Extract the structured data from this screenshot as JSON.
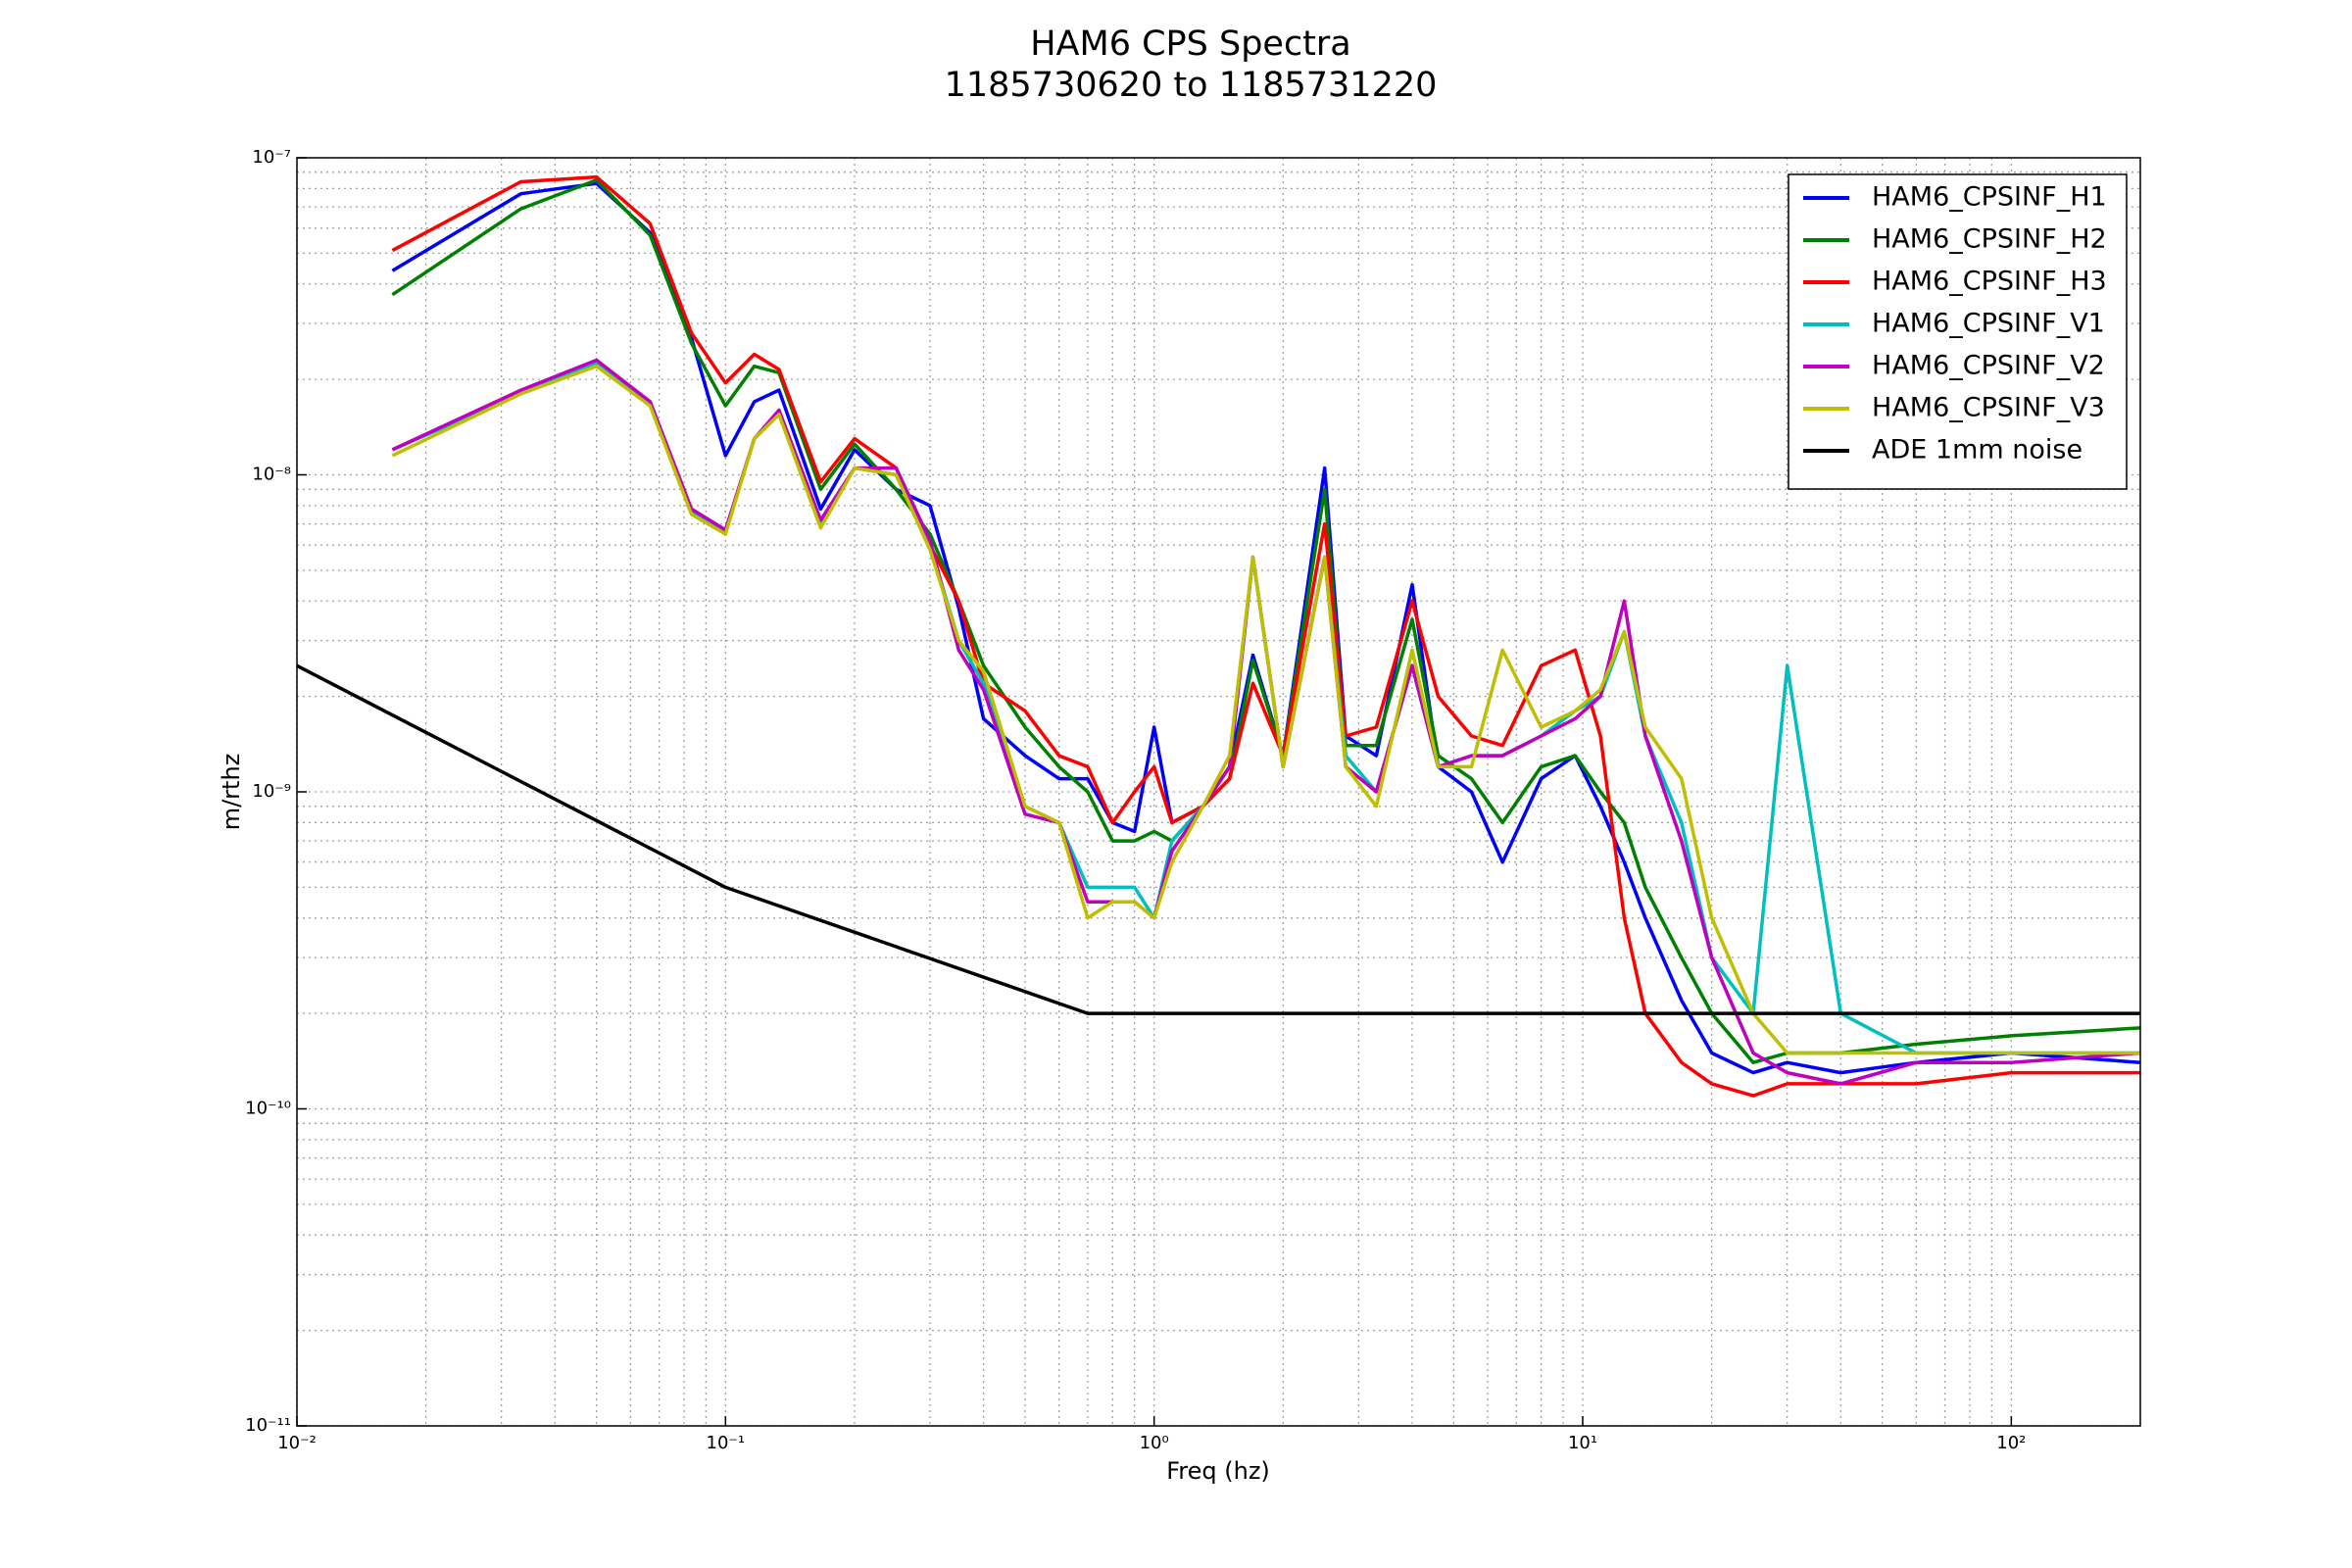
{
  "chart_data": {
    "type": "line",
    "title": "HAM6 CPS Spectra",
    "subtitle": "1185730620 to 1185731220",
    "x_label": "Freq (hz)",
    "y_label": "m/rthz",
    "log_x": true,
    "log_y": true,
    "grid": true,
    "legend": "upper right",
    "xlim": [
      0.01,
      200
    ],
    "ylim": [
      1e-11,
      1e-07
    ],
    "xticks": [
      {
        "value": 0.01,
        "label": "10⁻²"
      },
      {
        "value": 0.1,
        "label": "10⁻¹"
      },
      {
        "value": 1,
        "label": "10⁰"
      },
      {
        "value": 10,
        "label": "10¹"
      },
      {
        "value": 100,
        "label": "10²"
      }
    ],
    "yticks": [
      {
        "value": 1e-11,
        "label": "10⁻¹¹"
      },
      {
        "value": 1e-10,
        "label": "10⁻¹⁰"
      },
      {
        "value": 1e-09,
        "label": "10⁻⁹"
      },
      {
        "value": 1e-08,
        "label": "10⁻⁸"
      },
      {
        "value": 1e-07,
        "label": "10⁻⁷"
      }
    ],
    "x": [
      0.0167,
      0.0333,
      0.05,
      0.0667,
      0.0833,
      0.1,
      0.1167,
      0.1333,
      0.1667,
      0.2,
      0.25,
      0.3,
      0.35,
      0.4,
      0.5,
      0.6,
      0.7,
      0.8,
      0.9,
      1.0,
      1.1,
      1.3,
      1.5,
      1.7,
      2.0,
      2.5,
      2.8,
      3.3,
      4.0,
      4.6,
      5.5,
      6.5,
      8.0,
      9.6,
      11,
      12.5,
      14,
      17,
      20,
      25,
      30,
      40,
      60,
      100,
      200
    ],
    "series": [
      {
        "name": "HAM6_CPSINF_H1",
        "color": "#0000ff",
        "values": [
          4.4e-08,
          7.7e-08,
          8.3e-08,
          5.8e-08,
          2.7e-08,
          1.15e-08,
          1.7e-08,
          1.85e-08,
          7.8e-09,
          1.2e-08,
          9e-09,
          8e-09,
          3.8e-09,
          1.7e-09,
          1.3e-09,
          1.1e-09,
          1.1e-09,
          8e-10,
          7.5e-10,
          1.6e-09,
          8e-10,
          9e-10,
          1.2e-09,
          2.7e-09,
          1.3e-09,
          1.05e-08,
          1.5e-09,
          1.3e-09,
          4.5e-09,
          1.2e-09,
          1e-09,
          6e-10,
          1.1e-09,
          1.3e-09,
          9e-10,
          6e-10,
          4e-10,
          2.2e-10,
          1.5e-10,
          1.3e-10,
          1.4e-10,
          1.3e-10,
          1.4e-10,
          1.5e-10,
          1.4e-10
        ]
      },
      {
        "name": "HAM6_CPSINF_H2",
        "color": "#008000",
        "values": [
          3.7e-08,
          6.9e-08,
          8.5e-08,
          5.7e-08,
          2.6e-08,
          1.65e-08,
          2.2e-08,
          2.1e-08,
          9e-09,
          1.25e-08,
          9e-09,
          6.5e-09,
          4e-09,
          2.5e-09,
          1.6e-09,
          1.2e-09,
          1e-09,
          7e-10,
          7e-10,
          7.5e-10,
          7e-10,
          9e-10,
          1.1e-09,
          2.6e-09,
          1.3e-09,
          9e-09,
          1.4e-09,
          1.4e-09,
          3.5e-09,
          1.3e-09,
          1.1e-09,
          8e-10,
          1.2e-09,
          1.3e-09,
          1e-09,
          8e-10,
          5e-10,
          3e-10,
          2e-10,
          1.4e-10,
          1.5e-10,
          1.5e-10,
          1.6e-10,
          1.7e-10,
          1.8e-10
        ]
      },
      {
        "name": "HAM6_CPSINF_H3",
        "color": "#ff0000",
        "values": [
          5.1e-08,
          8.4e-08,
          8.7e-08,
          6.2e-08,
          2.8e-08,
          1.95e-08,
          2.4e-08,
          2.15e-08,
          9.5e-09,
          1.3e-08,
          1.05e-08,
          6e-09,
          4e-09,
          2.2e-09,
          1.8e-09,
          1.3e-09,
          1.2e-09,
          8e-10,
          1e-09,
          1.2e-09,
          8e-10,
          9e-10,
          1.1e-09,
          2.2e-09,
          1.3e-09,
          7e-09,
          1.5e-09,
          1.6e-09,
          4e-09,
          2e-09,
          1.5e-09,
          1.4e-09,
          2.5e-09,
          2.8e-09,
          1.5e-09,
          4e-10,
          2e-10,
          1.4e-10,
          1.2e-10,
          1.1e-10,
          1.2e-10,
          1.2e-10,
          1.2e-10,
          1.3e-10,
          1.3e-10
        ]
      },
      {
        "name": "HAM6_CPSINF_V1",
        "color": "#00bfbf",
        "values": [
          1.2e-08,
          1.8e-08,
          2.25e-08,
          1.7e-08,
          7.6e-09,
          6.6e-09,
          1.3e-08,
          1.55e-08,
          7e-09,
          1.05e-08,
          1e-08,
          6e-09,
          3e-09,
          2.2e-09,
          9e-10,
          8e-10,
          5e-10,
          5e-10,
          5e-10,
          4e-10,
          7e-10,
          9e-10,
          1.2e-09,
          5.5e-09,
          1.2e-09,
          5.5e-09,
          1.3e-09,
          1e-09,
          2.5e-09,
          1.2e-09,
          1.3e-09,
          1.3e-09,
          1.5e-09,
          1.8e-09,
          2e-09,
          3.2e-09,
          1.5e-09,
          8e-10,
          3e-10,
          2e-10,
          2.5e-09,
          2e-10,
          1.5e-10,
          1.5e-10,
          1.5e-10
        ]
      },
      {
        "name": "HAM6_CPSINF_V2",
        "color": "#bf00bf",
        "values": [
          1.2e-08,
          1.85e-08,
          2.3e-08,
          1.7e-08,
          7.8e-09,
          6.7e-09,
          1.3e-08,
          1.6e-08,
          7.2e-09,
          1.05e-08,
          1.05e-08,
          6.2e-09,
          2.8e-09,
          2.1e-09,
          8.5e-10,
          8e-10,
          4.5e-10,
          4.5e-10,
          4.5e-10,
          4e-10,
          6.5e-10,
          9e-10,
          1.2e-09,
          5.5e-09,
          1.2e-09,
          5.5e-09,
          1.2e-09,
          1e-09,
          2.5e-09,
          1.2e-09,
          1.3e-09,
          1.3e-09,
          1.5e-09,
          1.7e-09,
          2e-09,
          4e-09,
          1.5e-09,
          7e-10,
          3e-10,
          1.5e-10,
          1.3e-10,
          1.2e-10,
          1.4e-10,
          1.4e-10,
          1.5e-10
        ]
      },
      {
        "name": "HAM6_CPSINF_V3",
        "color": "#bfbf00",
        "values": [
          1.15e-08,
          1.8e-08,
          2.2e-08,
          1.65e-08,
          7.5e-09,
          6.5e-09,
          1.3e-08,
          1.55e-08,
          6.8e-09,
          1.05e-08,
          1e-08,
          5.8e-09,
          3e-09,
          2.4e-09,
          9e-10,
          8e-10,
          4e-10,
          4.5e-10,
          4.5e-10,
          4e-10,
          6e-10,
          9e-10,
          1.3e-09,
          5.5e-09,
          1.2e-09,
          5.5e-09,
          1.2e-09,
          9e-10,
          2.8e-09,
          1.2e-09,
          1.2e-09,
          2.8e-09,
          1.6e-09,
          1.8e-09,
          2.1e-09,
          3.2e-09,
          1.6e-09,
          1.1e-09,
          4e-10,
          2e-10,
          1.5e-10,
          1.5e-10,
          1.5e-10,
          1.5e-10,
          1.5e-10
        ]
      },
      {
        "name": "ADE 1mm noise",
        "color": "#000000",
        "x": [
          0.01,
          0.1,
          0.7,
          200
        ],
        "values": [
          2.5e-09,
          5e-10,
          2e-10,
          2e-10
        ]
      }
    ]
  }
}
